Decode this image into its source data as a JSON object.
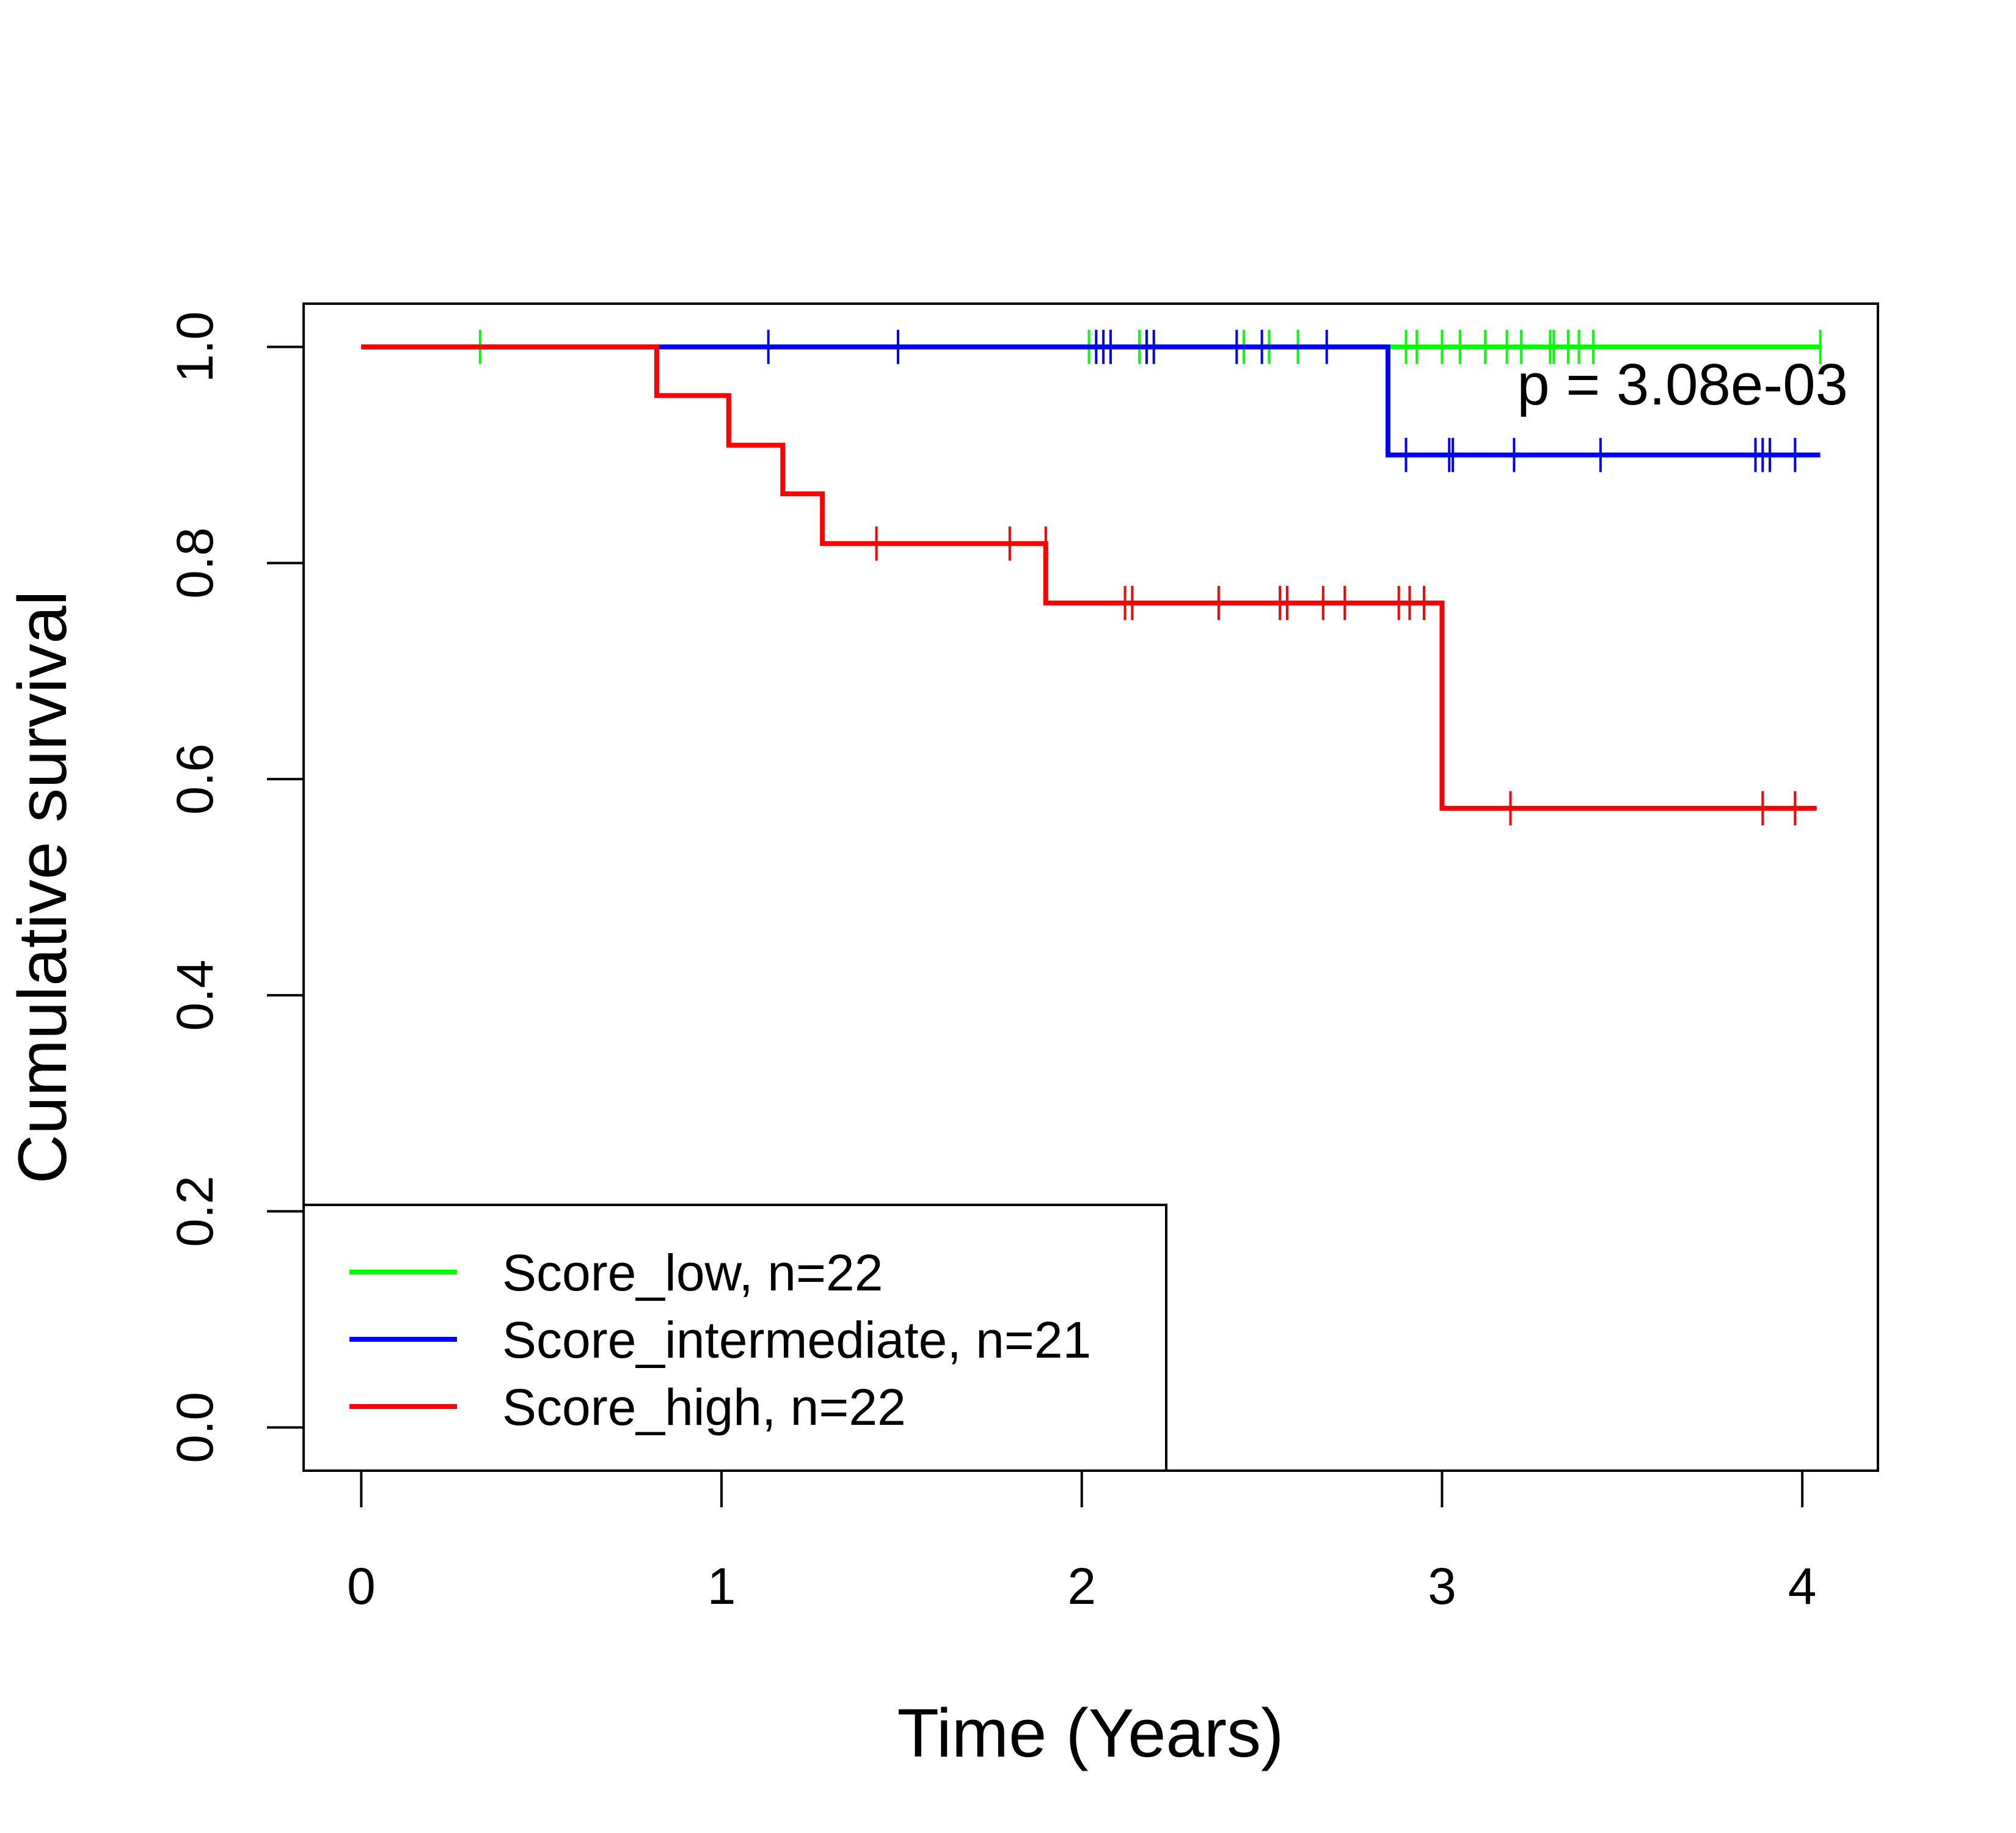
{
  "chart_data": {
    "type": "line",
    "title": "",
    "xlabel": "Time (Years)",
    "ylabel": "Cumulative survival",
    "xlim": [
      -0.16,
      4.21
    ],
    "ylim": [
      -0.04,
      1.04
    ],
    "xticks": [
      0,
      1,
      2,
      3,
      4
    ],
    "xtick_labels": [
      "0",
      "1",
      "2",
      "3",
      "4"
    ],
    "yticks": [
      0.0,
      0.2,
      0.4,
      0.6,
      0.8,
      1.0
    ],
    "ytick_labels": [
      "0.0",
      "0.2",
      "0.4",
      "0.6",
      "0.8",
      "1.0"
    ],
    "grid": false,
    "annotation": "p = 3.08e-03",
    "legend_position": "bottom-left",
    "series": [
      {
        "name": "Score_low, n=22",
        "color": "#00ff00",
        "step_times": [
          0,
          4.05
        ],
        "step_survival": [
          1.0,
          1.0
        ],
        "censor_times": [
          0.33,
          2.02,
          2.04,
          2.08,
          2.16,
          2.18,
          2.45,
          2.52,
          2.6,
          2.9,
          2.93,
          3.0,
          3.05,
          3.12,
          3.18,
          3.22,
          3.3,
          3.31,
          3.35,
          3.38,
          3.42,
          4.05
        ],
        "censor_survival": [
          1.0,
          1.0,
          1.0,
          1.0,
          1.0,
          1.0,
          1.0,
          1.0,
          1.0,
          1.0,
          1.0,
          1.0,
          1.0,
          1.0,
          1.0,
          1.0,
          1.0,
          1.0,
          1.0,
          1.0,
          1.0,
          1.0
        ]
      },
      {
        "name": "Score_intermediate, n=21",
        "color": "#0000ff",
        "step_times": [
          0,
          2.85,
          4.05
        ],
        "step_survival": [
          1.0,
          0.9,
          0.9
        ],
        "censor_times": [
          1.13,
          1.49,
          2.04,
          2.06,
          2.08,
          2.18,
          2.2,
          2.43,
          2.5,
          2.68,
          2.9,
          3.02,
          3.03,
          3.2,
          3.44,
          3.87,
          3.89,
          3.91,
          3.98
        ],
        "censor_survival": [
          1.0,
          1.0,
          1.0,
          1.0,
          1.0,
          1.0,
          1.0,
          1.0,
          1.0,
          1.0,
          0.9,
          0.9,
          0.9,
          0.9,
          0.9,
          0.9,
          0.9,
          0.9,
          0.9
        ]
      },
      {
        "name": "Score_high, n=22",
        "color": "#ff0000",
        "step_times": [
          0,
          0.82,
          1.02,
          1.17,
          1.28,
          1.9,
          3.0,
          4.04
        ],
        "step_survival": [
          1.0,
          0.955,
          0.909,
          0.864,
          0.818,
          0.763,
          0.573,
          0.573
        ],
        "censor_times": [
          1.43,
          1.8,
          1.9,
          2.12,
          2.14,
          2.38,
          2.55,
          2.57,
          2.67,
          2.73,
          2.88,
          2.91,
          2.95,
          3.19,
          3.89,
          3.98
        ],
        "censor_survival": [
          0.818,
          0.818,
          0.818,
          0.763,
          0.763,
          0.763,
          0.763,
          0.763,
          0.763,
          0.763,
          0.763,
          0.763,
          0.763,
          0.573,
          0.573,
          0.573
        ]
      }
    ]
  }
}
